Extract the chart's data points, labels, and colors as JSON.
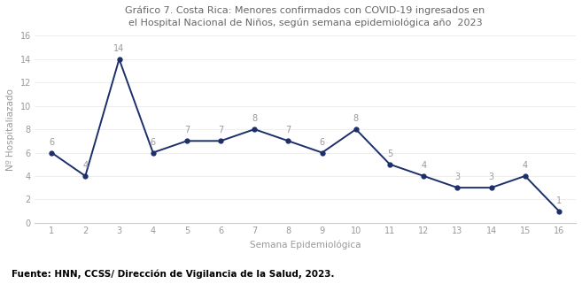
{
  "title_line1": "Gráfico 7. Costa Rica: Menores confirmados con COVID-19 ingresados en",
  "title_line2": "el Hospital Nacional de Niños, según semana epidemiológica año  2023",
  "xlabel": "Semana Epidemiológica",
  "ylabel": "Nº Hospitaliazado",
  "x": [
    1,
    2,
    3,
    4,
    5,
    6,
    7,
    8,
    9,
    10,
    11,
    12,
    13,
    14,
    15,
    16
  ],
  "y": [
    6,
    4,
    14,
    6,
    7,
    7,
    8,
    7,
    6,
    8,
    5,
    4,
    3,
    3,
    4,
    1
  ],
  "line_color": "#1c2f6b",
  "marker_color": "#1c2f6b",
  "ylim": [
    0,
    16
  ],
  "yticks": [
    0,
    2,
    4,
    6,
    8,
    10,
    12,
    14,
    16
  ],
  "xticks": [
    1,
    2,
    3,
    4,
    5,
    6,
    7,
    8,
    9,
    10,
    11,
    12,
    13,
    14,
    15,
    16
  ],
  "footer": "Fuente: HNN, CCSS/ Dirección de Vigilancia de la Salud, 2023.",
  "background_color": "#ffffff",
  "title_fontsize": 8.0,
  "axis_label_fontsize": 7.5,
  "tick_fontsize": 7.0,
  "annotation_fontsize": 7.0,
  "footer_fontsize": 7.5,
  "annotation_color": "#999999",
  "tick_color": "#999999",
  "label_color": "#999999",
  "title_color": "#666666",
  "spine_color": "#cccccc",
  "grid_color": "#e8e8e8"
}
